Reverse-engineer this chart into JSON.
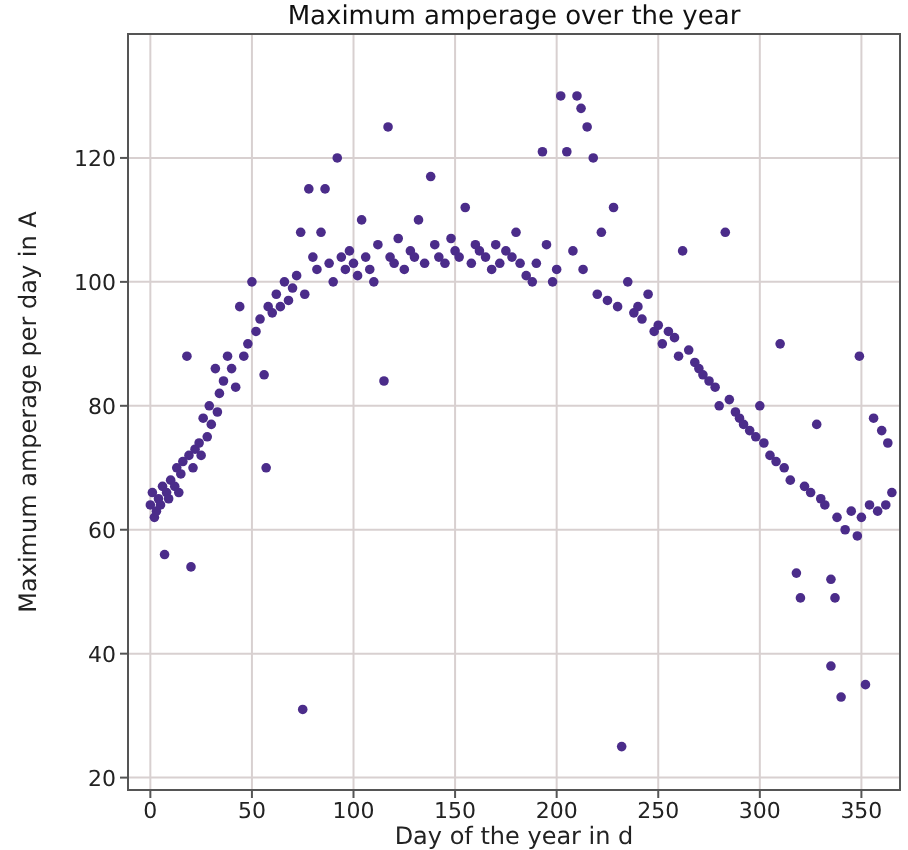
{
  "chart_data": {
    "type": "scatter",
    "title": "Maximum amperage over the year",
    "xlabel": "Day of the year in d",
    "ylabel": "Maximum amperage per day in A",
    "xlim": [
      -11,
      369
    ],
    "ylim": [
      18,
      140
    ],
    "xticks": [
      0,
      50,
      100,
      150,
      200,
      250,
      300,
      350
    ],
    "yticks": [
      20,
      40,
      60,
      80,
      100,
      120
    ],
    "grid": true,
    "marker": "circle",
    "series": [
      {
        "color": "#4b2c8a",
        "x": [
          0,
          1,
          2,
          3,
          4,
          5,
          6,
          7,
          8,
          9,
          10,
          12,
          13,
          14,
          15,
          16,
          18,
          19,
          20,
          21,
          22,
          24,
          25,
          26,
          28,
          29,
          30,
          32,
          33,
          34,
          36,
          38,
          40,
          42,
          44,
          46,
          48,
          50,
          52,
          54,
          56,
          57,
          58,
          60,
          62,
          64,
          66,
          68,
          70,
          72,
          74,
          75,
          76,
          78,
          80,
          82,
          84,
          86,
          88,
          90,
          92,
          94,
          96,
          98,
          100,
          102,
          104,
          106,
          108,
          110,
          112,
          115,
          117,
          118,
          120,
          122,
          125,
          128,
          130,
          132,
          135,
          138,
          140,
          142,
          145,
          148,
          150,
          152,
          155,
          158,
          160,
          162,
          165,
          168,
          170,
          172,
          175,
          178,
          180,
          182,
          185,
          188,
          190,
          193,
          195,
          198,
          200,
          202,
          205,
          208,
          210,
          212,
          213,
          215,
          218,
          220,
          222,
          225,
          228,
          230,
          232,
          235,
          238,
          240,
          242,
          245,
          248,
          250,
          252,
          255,
          258,
          260,
          262,
          265,
          268,
          270,
          272,
          275,
          278,
          280,
          283,
          285,
          288,
          290,
          292,
          295,
          298,
          300,
          302,
          305,
          308,
          310,
          312,
          315,
          318,
          320,
          322,
          325,
          328,
          330,
          332,
          335,
          335,
          337,
          338,
          340,
          342,
          345,
          348,
          349,
          350,
          352,
          354,
          356,
          358,
          360,
          362,
          363,
          365
        ],
        "values": [
          64,
          66,
          62,
          63,
          65,
          64,
          67,
          56,
          66,
          65,
          68,
          67,
          70,
          66,
          69,
          71,
          88,
          72,
          54,
          70,
          73,
          74,
          72,
          78,
          75,
          80,
          77,
          86,
          79,
          82,
          84,
          88,
          86,
          83,
          96,
          88,
          90,
          100,
          92,
          94,
          85,
          70,
          96,
          95,
          98,
          96,
          100,
          97,
          99,
          101,
          108,
          31,
          98,
          115,
          104,
          102,
          108,
          115,
          103,
          100,
          120,
          104,
          102,
          105,
          103,
          101,
          110,
          104,
          102,
          100,
          106,
          84,
          125,
          104,
          103,
          107,
          102,
          105,
          104,
          110,
          103,
          117,
          106,
          104,
          103,
          107,
          105,
          104,
          112,
          103,
          106,
          105,
          104,
          102,
          106,
          103,
          105,
          104,
          108,
          103,
          101,
          100,
          103,
          121,
          106,
          100,
          102,
          130,
          121,
          105,
          130,
          128,
          102,
          125,
          120,
          98,
          108,
          97,
          112,
          96,
          25,
          100,
          95,
          96,
          94,
          98,
          92,
          93,
          90,
          92,
          91,
          88,
          105,
          89,
          87,
          86,
          85,
          84,
          83,
          80,
          108,
          81,
          79,
          78,
          77,
          76,
          75,
          80,
          74,
          72,
          71,
          90,
          70,
          68,
          53,
          49,
          67,
          66,
          77,
          65,
          64,
          52,
          38,
          49,
          62,
          33,
          60,
          63,
          59,
          88,
          62,
          35,
          64,
          78,
          63,
          76,
          64,
          74,
          66
        ]
      }
    ]
  }
}
